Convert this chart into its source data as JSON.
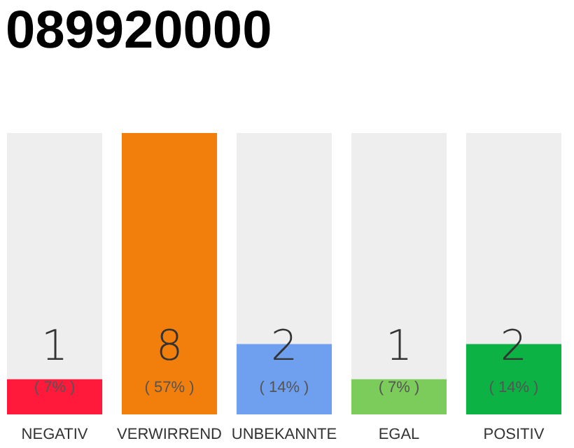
{
  "chart_data": {
    "type": "bar",
    "title": "089920000",
    "categories": [
      "NEGATIV",
      "VERWIRREND",
      "UNBEKANNTE",
      "EGAL",
      "POSITIV"
    ],
    "values": [
      1,
      8,
      2,
      1,
      2
    ],
    "colors": [
      "#ff1a3c",
      "#f27f0c",
      "#6ea0ef",
      "#7ccc5c",
      "#0db244"
    ],
    "ylim": [
      0,
      8
    ],
    "tick_labels": "x",
    "grid": false,
    "data_labels": true,
    "annotations": [
      "( 7% )",
      "( 57% )",
      "( 14% )",
      "( 7% )",
      "( 14% )"
    ]
  }
}
